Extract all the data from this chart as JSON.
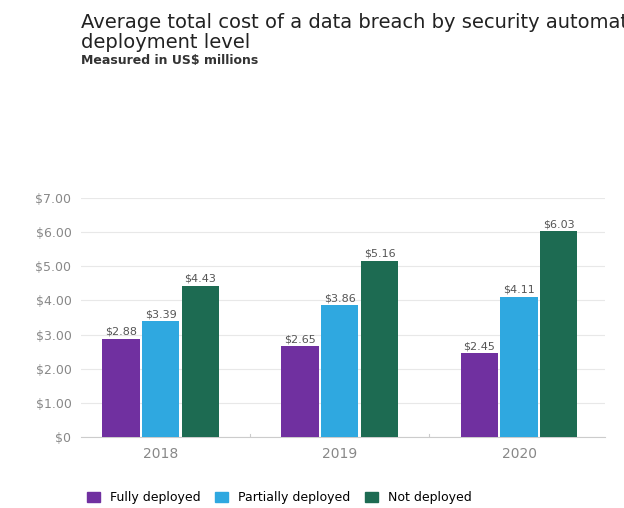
{
  "title_line1": "Average total cost of a data breach by security automation",
  "title_line2": "deployment level",
  "subtitle": "Measured in US$ millions",
  "years": [
    "2018",
    "2019",
    "2020"
  ],
  "categories": [
    "Fully deployed",
    "Partially deployed",
    "Not deployed"
  ],
  "values": {
    "2018": [
      2.88,
      3.39,
      4.43
    ],
    "2019": [
      2.65,
      3.86,
      5.16
    ],
    "2020": [
      2.45,
      4.11,
      6.03
    ]
  },
  "colors": [
    "#7030a0",
    "#2fa8e0",
    "#1d6b52"
  ],
  "ylim": [
    0,
    7.0
  ],
  "yticks": [
    0,
    1.0,
    2.0,
    3.0,
    4.0,
    5.0,
    6.0,
    7.0
  ],
  "ytick_labels": [
    "$0",
    "$1.00",
    "$2.00",
    "$3.00",
    "$4.00",
    "$5.00",
    "$6.00",
    "$7.00"
  ],
  "background_color": "#ffffff",
  "bar_width": 0.28,
  "title_fontsize": 14,
  "subtitle_fontsize": 9,
  "label_fontsize": 8
}
